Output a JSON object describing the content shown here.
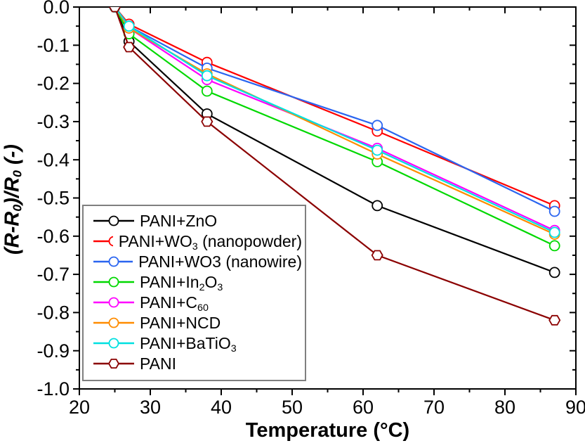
{
  "chart_data": {
    "type": "line",
    "title": "",
    "xlabel": "Temperature (°C)",
    "ylabel": "(R-R0)/R0 (-)",
    "ylabel_segments": [
      {
        "t": "("
      },
      {
        "t": "R",
        "i": true
      },
      {
        "t": "-"
      },
      {
        "t": "R",
        "i": true
      },
      {
        "t": "0",
        "sub": true
      },
      {
        "t": ")/"
      },
      {
        "t": "R",
        "i": true
      },
      {
        "t": "0",
        "sub": true
      },
      {
        "t": " (-)"
      }
    ],
    "xlim": [
      20,
      90
    ],
    "ylim": [
      -1.0,
      0.0
    ],
    "grid": false,
    "legend_position": "bottom-left",
    "x_major_ticks": [
      20,
      30,
      40,
      50,
      60,
      70,
      80,
      90
    ],
    "x_tick_labels": [
      "20",
      "30",
      "40",
      "50",
      "60",
      "70",
      "80",
      "90"
    ],
    "x_minor_ticks": [
      25,
      35,
      45,
      55,
      65,
      75,
      85
    ],
    "y_major_ticks": [
      0.0,
      -0.1,
      -0.2,
      -0.3,
      -0.4,
      -0.5,
      -0.6,
      -0.7,
      -0.8,
      -0.9,
      -1.0
    ],
    "y_tick_labels": [
      "0.0",
      "-0.1",
      "-0.2",
      "-0.3",
      "-0.4",
      "-0.5",
      "-0.6",
      "-0.7",
      "-0.8",
      "-0.9",
      "-1.0"
    ],
    "y_minor_ticks": [
      -0.05,
      -0.15,
      -0.25,
      -0.35,
      -0.45,
      -0.55,
      -0.65,
      -0.75,
      -0.85,
      -0.95
    ],
    "x": [
      25,
      27,
      38,
      62,
      87
    ],
    "series": [
      {
        "name": "PANI+ZnO",
        "label_segments": [
          {
            "t": "PANI+ZnO"
          }
        ],
        "color": "#000000",
        "marker": "circle",
        "values": [
          0.0,
          -0.09,
          -0.28,
          -0.52,
          -0.695
        ]
      },
      {
        "name": "PANI+WO3 (nanopowder)",
        "label_segments": [
          {
            "t": "PANI+WO"
          },
          {
            "t": "3",
            "sub": true
          },
          {
            "t": " (nanopowder)"
          }
        ],
        "color": "#ff0000",
        "marker": "circle",
        "values": [
          0.0,
          -0.045,
          -0.145,
          -0.325,
          -0.52
        ]
      },
      {
        "name": "PANI+WO3 (nanowire)",
        "label_segments": [
          {
            "t": "PANI+WO3 (nanowire)"
          }
        ],
        "color": "#2a65f0",
        "marker": "circle",
        "values": [
          0.0,
          -0.05,
          -0.16,
          -0.31,
          -0.535
        ]
      },
      {
        "name": "PANI+In2O3",
        "label_segments": [
          {
            "t": "PANI+In"
          },
          {
            "t": "2",
            "sub": true
          },
          {
            "t": "O"
          },
          {
            "t": "3",
            "sub": true
          }
        ],
        "color": "#00d800",
        "marker": "circle",
        "values": [
          0.0,
          -0.07,
          -0.22,
          -0.405,
          -0.625
        ]
      },
      {
        "name": "PANI+C60",
        "label_segments": [
          {
            "t": "PANI+C"
          },
          {
            "t": "60",
            "sub": true
          }
        ],
        "color": "#ff00ff",
        "marker": "circle",
        "values": [
          0.0,
          -0.055,
          -0.19,
          -0.37,
          -0.585
        ]
      },
      {
        "name": "PANI+NCD",
        "label_segments": [
          {
            "t": "PANI+NCD"
          }
        ],
        "color": "#ff8c00",
        "marker": "circle",
        "values": [
          0.0,
          -0.055,
          -0.175,
          -0.385,
          -0.595
        ]
      },
      {
        "name": "PANI+BaTiO3",
        "label_segments": [
          {
            "t": "PANI+BaTiO"
          },
          {
            "t": "3",
            "sub": true
          }
        ],
        "color": "#00e0e0",
        "marker": "circle",
        "values": [
          0.0,
          -0.05,
          -0.18,
          -0.375,
          -0.59
        ]
      },
      {
        "name": "PANI",
        "label_segments": [
          {
            "t": "PANI"
          }
        ],
        "color": "#8b0000",
        "marker": "hexagon",
        "values": [
          0.0,
          -0.105,
          -0.3,
          -0.65,
          -0.82
        ]
      }
    ]
  }
}
